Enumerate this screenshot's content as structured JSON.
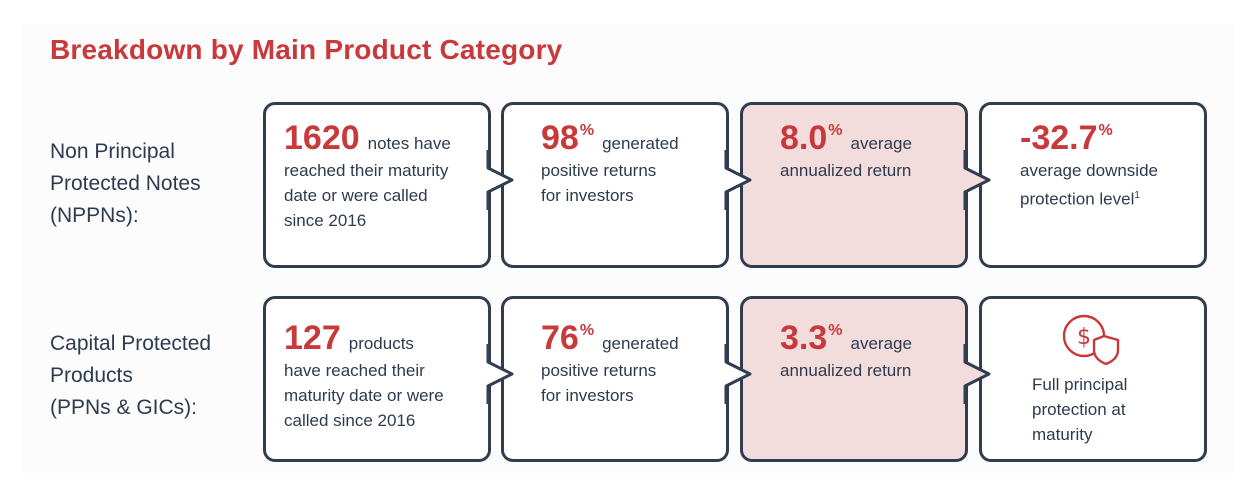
{
  "title": "Breakdown by Main Product Category",
  "accent_color": "#c8393b",
  "rows": [
    {
      "label": [
        "Non Principal",
        "Protected Notes",
        "(NPPNs):"
      ],
      "cells": [
        {
          "value": "1620",
          "pct": "",
          "after": "notes have",
          "lines": [
            "reached their maturity",
            "date or were called",
            "since 2016"
          ]
        },
        {
          "value": "98",
          "pct": "%",
          "after": "generated",
          "lines": [
            "positive returns",
            "for investors"
          ]
        },
        {
          "value": "8.0",
          "pct": "%",
          "after": "average",
          "lines": [
            "annualized return"
          ]
        },
        {
          "value": "-32.7",
          "pct": "%",
          "after": "",
          "lines": [
            "average downside",
            "protection level"
          ],
          "footnote": "1"
        }
      ]
    },
    {
      "label": [
        "Capital Protected",
        "Products",
        "(PPNs & GICs):"
      ],
      "cells": [
        {
          "value": "127",
          "pct": "",
          "after": "products",
          "lines": [
            "have reached their",
            "maturity date or were",
            "called since 2016"
          ]
        },
        {
          "value": "76",
          "pct": "%",
          "after": "generated",
          "lines": [
            "positive returns",
            "for investors"
          ]
        },
        {
          "value": "3.3",
          "pct": "%",
          "after": "average",
          "lines": [
            "annualized return"
          ]
        },
        {
          "icon": "dollar-shield-icon",
          "lines": [
            "Full principal",
            "protection at",
            "maturity"
          ]
        }
      ]
    }
  ]
}
